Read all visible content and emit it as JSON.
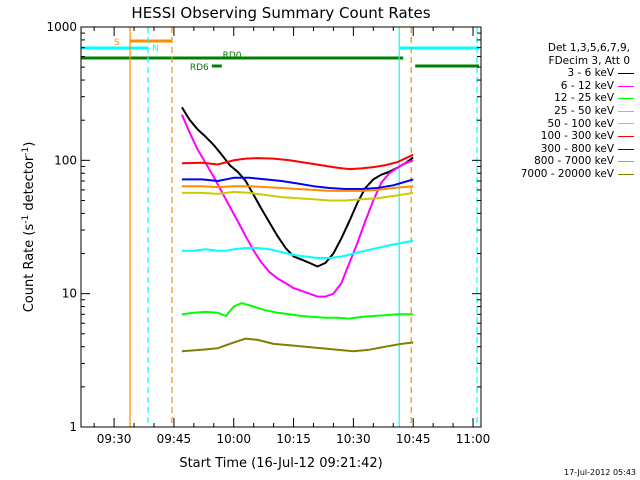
{
  "chart_data": {
    "type": "line",
    "title": "HESSI Observing Summary Count Rates",
    "xlabel": "Start Time (16-Jul-12 09:21:42)",
    "ylabel_main": "Count Rate (s",
    "ylabel_sup1": "-1",
    "ylabel_mid": " detector",
    "ylabel_sup2": "-1",
    "ylabel_end": ")",
    "yscale": "log",
    "ylim": [
      1,
      1000
    ],
    "xlim_min": [
      21.7,
      122
    ],
    "x_units": "minutes after 09:00",
    "x_ticks": [
      {
        "min": 30,
        "label": "09:30"
      },
      {
        "min": 45,
        "label": "09:45"
      },
      {
        "min": 60,
        "label": "10:00"
      },
      {
        "min": 75,
        "label": "10:15"
      },
      {
        "min": 90,
        "label": "10:30"
      },
      {
        "min": 105,
        "label": "10:45"
      },
      {
        "min": 120,
        "label": "11:00"
      }
    ],
    "y_ticks": [
      {
        "v": 1,
        "label": "1"
      },
      {
        "v": 10,
        "label": "10"
      },
      {
        "v": 100,
        "label": "100"
      },
      {
        "v": 1000,
        "label": "1000"
      }
    ],
    "legend_header": [
      "Det 1,3,5,6,7,9,",
      "FDecim 3, Att 0"
    ],
    "series": [
      {
        "name": "3 - 6 keV",
        "color": "#000000",
        "points": [
          [
            47,
            250
          ],
          [
            49,
            200
          ],
          [
            51,
            170
          ],
          [
            53,
            150
          ],
          [
            55,
            130
          ],
          [
            57,
            110
          ],
          [
            59,
            92
          ],
          [
            61,
            82
          ],
          [
            63,
            70
          ],
          [
            65,
            55
          ],
          [
            67,
            43
          ],
          [
            69,
            34
          ],
          [
            71,
            27
          ],
          [
            73,
            22
          ],
          [
            75,
            19
          ],
          [
            77,
            18
          ],
          [
            79,
            17
          ],
          [
            81,
            16
          ],
          [
            83,
            17
          ],
          [
            85,
            20
          ],
          [
            87,
            26
          ],
          [
            89,
            35
          ],
          [
            91,
            48
          ],
          [
            93,
            62
          ],
          [
            95,
            72
          ],
          [
            97,
            78
          ],
          [
            99,
            82
          ],
          [
            101,
            88
          ],
          [
            103,
            95
          ],
          [
            105,
            105
          ]
        ]
      },
      {
        "name": "6 - 12 keV",
        "color": "#ff00ff",
        "points": [
          [
            47,
            220
          ],
          [
            49,
            160
          ],
          [
            51,
            120
          ],
          [
            53,
            95
          ],
          [
            55,
            75
          ],
          [
            57,
            58
          ],
          [
            59,
            45
          ],
          [
            61,
            35
          ],
          [
            63,
            27
          ],
          [
            65,
            21
          ],
          [
            67,
            17
          ],
          [
            69,
            14.5
          ],
          [
            71,
            13
          ],
          [
            73,
            12
          ],
          [
            75,
            11
          ],
          [
            77,
            10.5
          ],
          [
            79,
            10
          ],
          [
            81,
            9.5
          ],
          [
            83,
            9.5
          ],
          [
            85,
            10
          ],
          [
            87,
            12
          ],
          [
            89,
            17
          ],
          [
            91,
            24
          ],
          [
            93,
            35
          ],
          [
            95,
            50
          ],
          [
            97,
            68
          ],
          [
            99,
            80
          ],
          [
            101,
            88
          ],
          [
            103,
            95
          ],
          [
            105,
            100
          ]
        ]
      },
      {
        "name": "12 - 25 keV",
        "color": "#00ff00",
        "points": [
          [
            47,
            7
          ],
          [
            50,
            7.2
          ],
          [
            53,
            7.3
          ],
          [
            56,
            7.2
          ],
          [
            58,
            6.8
          ],
          [
            60,
            8
          ],
          [
            62,
            8.5
          ],
          [
            65,
            8
          ],
          [
            68,
            7.5
          ],
          [
            71,
            7.2
          ],
          [
            74,
            7
          ],
          [
            77,
            6.8
          ],
          [
            80,
            6.7
          ],
          [
            83,
            6.6
          ],
          [
            86,
            6.6
          ],
          [
            89,
            6.5
          ],
          [
            92,
            6.7
          ],
          [
            95,
            6.8
          ],
          [
            98,
            6.9
          ],
          [
            101,
            7
          ],
          [
            104,
            7
          ],
          [
            105,
            7
          ]
        ]
      },
      {
        "name": "25 - 50 keV",
        "color": "#00ffff",
        "points": [
          [
            47,
            21
          ],
          [
            50,
            21
          ],
          [
            53,
            21.5
          ],
          [
            56,
            21
          ],
          [
            58,
            21
          ],
          [
            60,
            21.5
          ],
          [
            63,
            22
          ],
          [
            66,
            22
          ],
          [
            69,
            21.5
          ],
          [
            72,
            20.5
          ],
          [
            75,
            19.5
          ],
          [
            78,
            19
          ],
          [
            81,
            18.5
          ],
          [
            84,
            18.5
          ],
          [
            87,
            19
          ],
          [
            90,
            20
          ],
          [
            93,
            21
          ],
          [
            96,
            22
          ],
          [
            99,
            23
          ],
          [
            102,
            24
          ],
          [
            105,
            25
          ]
        ]
      },
      {
        "name": "50 - 100 keV",
        "color": "#cccc00",
        "points": [
          [
            47,
            57
          ],
          [
            52,
            57
          ],
          [
            56,
            56
          ],
          [
            60,
            58
          ],
          [
            64,
            57
          ],
          [
            68,
            55
          ],
          [
            72,
            53
          ],
          [
            76,
            52
          ],
          [
            80,
            51
          ],
          [
            84,
            50
          ],
          [
            88,
            50
          ],
          [
            92,
            51
          ],
          [
            96,
            52
          ],
          [
            100,
            54
          ],
          [
            105,
            57
          ]
        ]
      },
      {
        "name": "100 - 300 keV",
        "color": "#ff0000",
        "points": [
          [
            47,
            95
          ],
          [
            52,
            96
          ],
          [
            56,
            93
          ],
          [
            60,
            100
          ],
          [
            63,
            103
          ],
          [
            66,
            104
          ],
          [
            70,
            103
          ],
          [
            74,
            100
          ],
          [
            78,
            96
          ],
          [
            82,
            92
          ],
          [
            86,
            88
          ],
          [
            89,
            86
          ],
          [
            92,
            87
          ],
          [
            95,
            89
          ],
          [
            98,
            92
          ],
          [
            101,
            97
          ],
          [
            105,
            110
          ]
        ]
      },
      {
        "name": "300 - 800 keV",
        "color": "#0000ff",
        "points": [
          [
            47,
            72
          ],
          [
            52,
            72
          ],
          [
            56,
            70
          ],
          [
            60,
            74
          ],
          [
            64,
            74
          ],
          [
            68,
            72
          ],
          [
            72,
            70
          ],
          [
            76,
            67
          ],
          [
            80,
            64
          ],
          [
            84,
            62
          ],
          [
            88,
            61
          ],
          [
            92,
            61
          ],
          [
            96,
            62
          ],
          [
            100,
            65
          ],
          [
            105,
            72
          ]
        ]
      },
      {
        "name": "800 - 7000 keV",
        "color": "#ff8c00",
        "points": [
          [
            47,
            64
          ],
          [
            52,
            64
          ],
          [
            56,
            63
          ],
          [
            60,
            64
          ],
          [
            64,
            64
          ],
          [
            68,
            63
          ],
          [
            72,
            62
          ],
          [
            76,
            61
          ],
          [
            80,
            60
          ],
          [
            84,
            59
          ],
          [
            88,
            59
          ],
          [
            92,
            59
          ],
          [
            96,
            60
          ],
          [
            100,
            62
          ],
          [
            105,
            64
          ]
        ]
      },
      {
        "name": "7000 - 20000 keV",
        "color": "#808000",
        "points": [
          [
            47,
            3.7
          ],
          [
            52,
            3.8
          ],
          [
            56,
            3.9
          ],
          [
            60,
            4.3
          ],
          [
            63,
            4.6
          ],
          [
            66,
            4.5
          ],
          [
            70,
            4.2
          ],
          [
            74,
            4.1
          ],
          [
            78,
            4.0
          ],
          [
            82,
            3.9
          ],
          [
            86,
            3.8
          ],
          [
            90,
            3.7
          ],
          [
            94,
            3.8
          ],
          [
            98,
            4.0
          ],
          [
            102,
            4.2
          ],
          [
            105,
            4.3
          ]
        ]
      }
    ],
    "flag_bars": [
      {
        "label": "S",
        "color": "#ff8c00",
        "from": 34,
        "to": 44.5,
        "level": "top"
      },
      {
        "label": "N",
        "color": "#00ffff",
        "from": 21.7,
        "to": 38.5,
        "level": "mid"
      },
      {
        "label": "",
        "color": "#00ffff",
        "from": 101.5,
        "to": 121.5,
        "level": "mid"
      },
      {
        "label": "RD0",
        "color": "#008000",
        "from": 21.7,
        "to": 102.5,
        "level": "low"
      },
      {
        "label": "",
        "color": "#008000",
        "from": 105.5,
        "to": 121.5,
        "level": "lowb"
      },
      {
        "label": "RD6",
        "color": "#008000",
        "from": 54.5,
        "to": 57,
        "level": "lowb"
      }
    ],
    "vertical_markers": [
      {
        "min": 34,
        "color": "#ff8c00",
        "dash": false
      },
      {
        "min": 38.5,
        "color": "#00ffff",
        "dash": true
      },
      {
        "min": 44.5,
        "color": "#ff8c00",
        "dash": true
      },
      {
        "min": 101.5,
        "color": "#00ffff",
        "dash": false
      },
      {
        "min": 104.5,
        "color": "#ff8c00",
        "dash": true
      },
      {
        "min": 121,
        "color": "#00ffff",
        "dash": true
      }
    ]
  },
  "timestamp": "17-Jul-2012 05:43"
}
